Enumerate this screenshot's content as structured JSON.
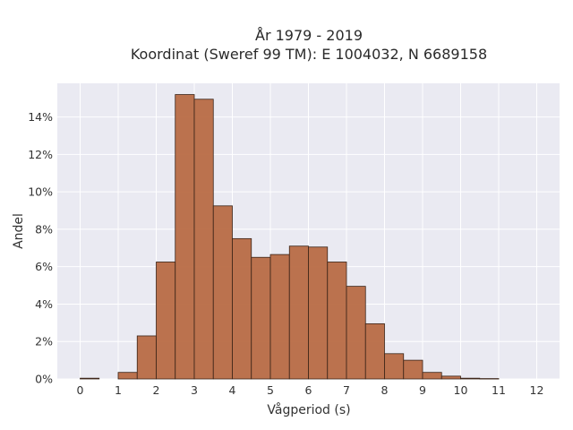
{
  "chart_data": {
    "type": "bar",
    "title": "År 1979 - 2019",
    "subtitle": "Koordinat (Sweref 99 TM): E 1004032, N 6689158",
    "xlabel": "Vågperiod (s)",
    "ylabel": "Andel",
    "xlim": [
      -0.6,
      12.6
    ],
    "ylim": [
      0,
      15.8
    ],
    "x_ticks": [
      0,
      1,
      2,
      3,
      4,
      5,
      6,
      7,
      8,
      9,
      10,
      11,
      12
    ],
    "x_tick_labels": [
      "0",
      "1",
      "2",
      "3",
      "4",
      "5",
      "6",
      "7",
      "8",
      "9",
      "10",
      "11",
      "12"
    ],
    "y_ticks": [
      0,
      2,
      4,
      6,
      8,
      10,
      12,
      14
    ],
    "y_tick_labels": [
      "0%",
      "2%",
      "4%",
      "6%",
      "8%",
      "10%",
      "12%",
      "14%"
    ],
    "grid": true,
    "legend": "none",
    "bar_color": "#b86b45",
    "bar_edge_color": "#3a2418",
    "plot_background": "#eaeaf2",
    "bin_width": 0.5,
    "bins": [
      {
        "start": 0.0,
        "value": 0.04
      },
      {
        "start": 1.0,
        "value": 0.35
      },
      {
        "start": 1.5,
        "value": 2.3
      },
      {
        "start": 2.0,
        "value": 6.25
      },
      {
        "start": 2.5,
        "value": 15.2
      },
      {
        "start": 3.0,
        "value": 14.95
      },
      {
        "start": 3.5,
        "value": 9.25
      },
      {
        "start": 4.0,
        "value": 7.5
      },
      {
        "start": 4.5,
        "value": 6.5
      },
      {
        "start": 5.0,
        "value": 6.65
      },
      {
        "start": 5.5,
        "value": 7.1
      },
      {
        "start": 6.0,
        "value": 7.05
      },
      {
        "start": 6.5,
        "value": 6.25
      },
      {
        "start": 7.0,
        "value": 4.95
      },
      {
        "start": 7.5,
        "value": 2.95
      },
      {
        "start": 8.0,
        "value": 1.35
      },
      {
        "start": 8.5,
        "value": 1.0
      },
      {
        "start": 9.0,
        "value": 0.35
      },
      {
        "start": 9.5,
        "value": 0.15
      },
      {
        "start": 10.0,
        "value": 0.04
      },
      {
        "start": 10.5,
        "value": 0.02
      }
    ]
  }
}
